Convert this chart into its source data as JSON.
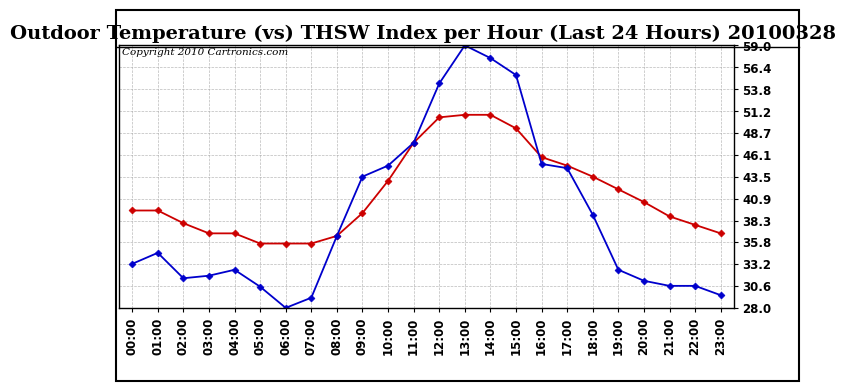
{
  "title": "Outdoor Temperature (vs) THSW Index per Hour (Last 24 Hours) 20100328",
  "copyright": "Copyright 2010 Cartronics.com",
  "hours": [
    0,
    1,
    2,
    3,
    4,
    5,
    6,
    7,
    8,
    9,
    10,
    11,
    12,
    13,
    14,
    15,
    16,
    17,
    18,
    19,
    20,
    21,
    22,
    23
  ],
  "hour_labels": [
    "00:00",
    "01:00",
    "02:00",
    "03:00",
    "04:00",
    "05:00",
    "06:00",
    "07:00",
    "08:00",
    "09:00",
    "10:00",
    "11:00",
    "12:00",
    "13:00",
    "14:00",
    "15:00",
    "16:00",
    "17:00",
    "18:00",
    "19:00",
    "20:00",
    "21:00",
    "22:00",
    "23:00"
  ],
  "temp_outdoor": [
    39.5,
    39.5,
    38.0,
    36.8,
    36.8,
    35.6,
    35.6,
    35.6,
    36.5,
    39.2,
    43.0,
    47.5,
    50.5,
    50.8,
    50.8,
    49.2,
    45.8,
    44.8,
    43.5,
    42.0,
    40.5,
    38.8,
    37.8,
    36.8
  ],
  "thsw_index": [
    33.2,
    34.5,
    31.5,
    31.8,
    32.5,
    30.5,
    28.0,
    29.2,
    36.5,
    43.5,
    44.8,
    47.5,
    54.5,
    59.0,
    57.5,
    55.5,
    45.0,
    44.5,
    39.0,
    32.5,
    31.2,
    30.6,
    30.6,
    29.5
  ],
  "temp_color": "#cc0000",
  "thsw_color": "#0000cc",
  "bg_color": "#ffffff",
  "grid_color": "#aaaaaa",
  "ylim": [
    28.0,
    59.0
  ],
  "yticks": [
    28.0,
    30.6,
    33.2,
    35.8,
    38.3,
    40.9,
    43.5,
    46.1,
    48.7,
    51.2,
    53.8,
    56.4,
    59.0
  ],
  "title_fontsize": 14,
  "copyright_fontsize": 7.5,
  "tick_fontsize": 8.5,
  "marker_size": 3.5,
  "line_width": 1.3
}
